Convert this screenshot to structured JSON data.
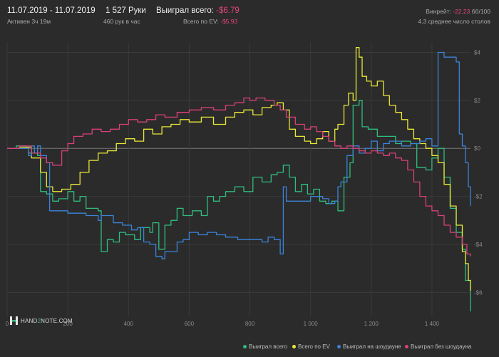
{
  "header": {
    "date_range": "11.07.2019 - 11.07.2019",
    "active": "Активен 3ч 19м",
    "hands": "1 527 Руки",
    "hands_per_hour": "460 рук в час",
    "won_label": "Выиграл всего:",
    "won_value": "-$6.79",
    "ev_label": "Всего по EV:",
    "ev_value": "-$5.93",
    "winrate_label": "Винрейт:",
    "winrate_value": "-22.23",
    "winrate_unit": "бб/100",
    "tables": "4.3 среднее число столов"
  },
  "logo": {
    "text_pre": "HAND",
    "text_mid": "2",
    "text_post": "NOTE.COM"
  },
  "colors": {
    "won": "#2ebd7e",
    "ev": "#e8e838",
    "showdown": "#3b83d9",
    "nonshowdown": "#d9407a",
    "grid": "#3a3a3a",
    "zero": "#777777"
  },
  "chart_data": {
    "type": "line",
    "xlim": [
      0,
      1527
    ],
    "ylim": [
      -7,
      4.4
    ],
    "x_ticks": [
      0,
      200,
      400,
      600,
      800,
      1000,
      1200,
      1400
    ],
    "x_tick_labels": [
      "0",
      "200",
      "400",
      "600",
      "800",
      "1 000",
      "1 200",
      "1 400"
    ],
    "y_ticks": [
      4,
      2,
      0,
      -2,
      -4,
      -6
    ],
    "y_tick_labels": [
      "$4",
      "$2",
      "$0",
      "-$2",
      "-$4",
      "-$6"
    ],
    "series": [
      {
        "name": "Выиграл всего",
        "color_key": "won",
        "points": [
          [
            0,
            0
          ],
          [
            30,
            0.1
          ],
          [
            60,
            0.05
          ],
          [
            70,
            -0.2
          ],
          [
            100,
            -0.3
          ],
          [
            110,
            -1.8
          ],
          [
            130,
            -1.9
          ],
          [
            150,
            -2.2
          ],
          [
            170,
            -2.1
          ],
          [
            200,
            -1.8
          ],
          [
            220,
            -2.2
          ],
          [
            240,
            -2.0
          ],
          [
            260,
            -2.5
          ],
          [
            300,
            -2.6
          ],
          [
            310,
            -4.3
          ],
          [
            330,
            -3.8
          ],
          [
            350,
            -3.9
          ],
          [
            370,
            -3.5
          ],
          [
            390,
            -3.6
          ],
          [
            420,
            -3.8
          ],
          [
            440,
            -3.3
          ],
          [
            470,
            -3.5
          ],
          [
            480,
            -3.1
          ],
          [
            500,
            -4.2
          ],
          [
            520,
            -3.2
          ],
          [
            540,
            -3.0
          ],
          [
            560,
            -2.5
          ],
          [
            580,
            -2.8
          ],
          [
            610,
            -2.6
          ],
          [
            640,
            -2.8
          ],
          [
            660,
            -2.0
          ],
          [
            680,
            -2.2
          ],
          [
            700,
            -2.0
          ],
          [
            720,
            -1.8
          ],
          [
            750,
            -1.6
          ],
          [
            780,
            -1.8
          ],
          [
            810,
            -1.2
          ],
          [
            840,
            -1.4
          ],
          [
            870,
            -1.1
          ],
          [
            890,
            -1.0
          ],
          [
            910,
            -0.7
          ],
          [
            930,
            -1.2
          ],
          [
            950,
            -1.8
          ],
          [
            970,
            -1.5
          ],
          [
            990,
            -1.9
          ],
          [
            1010,
            -1.7
          ],
          [
            1030,
            -2.2
          ],
          [
            1050,
            -2.3
          ],
          [
            1070,
            -2.2
          ],
          [
            1090,
            -2.6
          ],
          [
            1110,
            -1.2
          ],
          [
            1130,
            -0.6
          ],
          [
            1140,
            1.8
          ],
          [
            1160,
            2.0
          ],
          [
            1170,
            0.9
          ],
          [
            1190,
            0.8
          ],
          [
            1220,
            0.5
          ],
          [
            1250,
            0.5
          ],
          [
            1280,
            0.2
          ],
          [
            1300,
            0.3
          ],
          [
            1330,
            0.2
          ],
          [
            1350,
            -0.8
          ],
          [
            1380,
            -0.9
          ],
          [
            1400,
            -0.4
          ],
          [
            1420,
            0.0
          ],
          [
            1440,
            -1.2
          ],
          [
            1460,
            -2.5
          ],
          [
            1480,
            -3.5
          ],
          [
            1500,
            -4.2
          ],
          [
            1510,
            -5.5
          ],
          [
            1527,
            -6.79
          ]
        ]
      },
      {
        "name": "Всего по EV",
        "color_key": "ev",
        "points": [
          [
            0,
            0
          ],
          [
            40,
            0.05
          ],
          [
            80,
            -0.4
          ],
          [
            110,
            -1.0
          ],
          [
            130,
            -1.6
          ],
          [
            150,
            -1.8
          ],
          [
            180,
            -1.7
          ],
          [
            210,
            -1.5
          ],
          [
            240,
            -1.0
          ],
          [
            270,
            -0.5
          ],
          [
            300,
            -0.2
          ],
          [
            330,
            -0.1
          ],
          [
            360,
            0.2
          ],
          [
            390,
            0.4
          ],
          [
            420,
            0.3
          ],
          [
            450,
            0.8
          ],
          [
            480,
            0.6
          ],
          [
            510,
            0.9
          ],
          [
            540,
            1.0
          ],
          [
            570,
            1.2
          ],
          [
            600,
            1.1
          ],
          [
            640,
            1.3
          ],
          [
            680,
            1.0
          ],
          [
            720,
            1.3
          ],
          [
            750,
            1.5
          ],
          [
            780,
            1.6
          ],
          [
            810,
            1.4
          ],
          [
            840,
            1.7
          ],
          [
            870,
            1.8
          ],
          [
            890,
            1.9
          ],
          [
            910,
            1.6
          ],
          [
            930,
            0.8
          ],
          [
            950,
            0.5
          ],
          [
            980,
            0.3
          ],
          [
            1000,
            0.2
          ],
          [
            1020,
            0.4
          ],
          [
            1040,
            0.7
          ],
          [
            1060,
            0.3
          ],
          [
            1080,
            0.8
          ],
          [
            1090,
            1.0
          ],
          [
            1110,
            1.8
          ],
          [
            1125,
            2.3
          ],
          [
            1140,
            2.0
          ],
          [
            1150,
            4.2
          ],
          [
            1160,
            3.8
          ],
          [
            1170,
            3.0
          ],
          [
            1185,
            2.8
          ],
          [
            1200,
            2.6
          ],
          [
            1220,
            2.8
          ],
          [
            1240,
            2.2
          ],
          [
            1260,
            1.8
          ],
          [
            1280,
            1.5
          ],
          [
            1300,
            1.2
          ],
          [
            1320,
            0.8
          ],
          [
            1340,
            0.4
          ],
          [
            1360,
            0.2
          ],
          [
            1380,
            0.0
          ],
          [
            1400,
            -0.3
          ],
          [
            1420,
            -0.6
          ],
          [
            1440,
            -1.5
          ],
          [
            1460,
            -2.4
          ],
          [
            1480,
            -3.2
          ],
          [
            1500,
            -4.3
          ],
          [
            1510,
            -4.8
          ],
          [
            1520,
            -5.5
          ],
          [
            1527,
            -5.93
          ]
        ]
      },
      {
        "name": "Выиграл на шоудауне",
        "color_key": "showdown",
        "points": [
          [
            0,
            0
          ],
          [
            60,
            0
          ],
          [
            70,
            -0.3
          ],
          [
            80,
            0.1
          ],
          [
            90,
            -0.2
          ],
          [
            100,
            0.1
          ],
          [
            110,
            -0.3
          ],
          [
            130,
            -0.6
          ],
          [
            140,
            -2.6
          ],
          [
            180,
            -2.6
          ],
          [
            200,
            -2.7
          ],
          [
            260,
            -2.8
          ],
          [
            300,
            -3.0
          ],
          [
            310,
            -2.8
          ],
          [
            350,
            -3.1
          ],
          [
            380,
            -3.2
          ],
          [
            410,
            -3.4
          ],
          [
            430,
            -3.3
          ],
          [
            450,
            -3.9
          ],
          [
            470,
            -4.0
          ],
          [
            490,
            -4.5
          ],
          [
            510,
            -4.6
          ],
          [
            520,
            -4.3
          ],
          [
            560,
            -3.9
          ],
          [
            580,
            -3.8
          ],
          [
            600,
            -3.5
          ],
          [
            630,
            -3.6
          ],
          [
            660,
            -3.5
          ],
          [
            690,
            -3.6
          ],
          [
            720,
            -3.7
          ],
          [
            760,
            -3.8
          ],
          [
            800,
            -3.8
          ],
          [
            840,
            -3.9
          ],
          [
            860,
            -3.7
          ],
          [
            880,
            -3.8
          ],
          [
            900,
            -4.4
          ],
          [
            910,
            -1.6
          ],
          [
            920,
            -2.2
          ],
          [
            960,
            -2.2
          ],
          [
            1000,
            -2.0
          ],
          [
            1040,
            -2.1
          ],
          [
            1060,
            -2.3
          ],
          [
            1080,
            -2.2
          ],
          [
            1090,
            -1.6
          ],
          [
            1100,
            -1.4
          ],
          [
            1120,
            -0.3
          ],
          [
            1140,
            0.1
          ],
          [
            1160,
            -0.2
          ],
          [
            1180,
            0.0
          ],
          [
            1200,
            0.3
          ],
          [
            1220,
            -0.1
          ],
          [
            1240,
            0.2
          ],
          [
            1260,
            0.3
          ],
          [
            1300,
            0.1
          ],
          [
            1330,
            0.2
          ],
          [
            1360,
            0.3
          ],
          [
            1380,
            0.4
          ],
          [
            1400,
            0.1
          ],
          [
            1420,
            4.0
          ],
          [
            1440,
            3.8
          ],
          [
            1460,
            3.8
          ],
          [
            1480,
            3.6
          ],
          [
            1490,
            0.6
          ],
          [
            1500,
            0.1
          ],
          [
            1510,
            -0.6
          ],
          [
            1520,
            -1.6
          ],
          [
            1527,
            -2.4
          ]
        ]
      },
      {
        "name": "Выиграл без шоудауна",
        "color_key": "nonshowdown",
        "points": [
          [
            0,
            0
          ],
          [
            40,
            0.1
          ],
          [
            80,
            -0.2
          ],
          [
            110,
            -0.4
          ],
          [
            130,
            -0.6
          ],
          [
            150,
            -0.7
          ],
          [
            180,
            -0.1
          ],
          [
            200,
            0.2
          ],
          [
            220,
            0.5
          ],
          [
            250,
            0.6
          ],
          [
            280,
            0.8
          ],
          [
            310,
            0.7
          ],
          [
            340,
            0.8
          ],
          [
            370,
            1.0
          ],
          [
            400,
            1.2
          ],
          [
            430,
            1.1
          ],
          [
            460,
            1.2
          ],
          [
            490,
            1.4
          ],
          [
            520,
            1.3
          ],
          [
            560,
            1.5
          ],
          [
            600,
            1.6
          ],
          [
            640,
            1.7
          ],
          [
            680,
            1.6
          ],
          [
            720,
            1.8
          ],
          [
            750,
            1.9
          ],
          [
            780,
            2.1
          ],
          [
            800,
            2.0
          ],
          [
            820,
            2.1
          ],
          [
            850,
            2.0
          ],
          [
            880,
            1.8
          ],
          [
            900,
            1.6
          ],
          [
            920,
            1.3
          ],
          [
            950,
            1.0
          ],
          [
            980,
            0.8
          ],
          [
            1000,
            0.9
          ],
          [
            1020,
            0.7
          ],
          [
            1040,
            0.5
          ],
          [
            1060,
            0.3
          ],
          [
            1080,
            0.1
          ],
          [
            1100,
            0.0
          ],
          [
            1120,
            0.1
          ],
          [
            1140,
            0.0
          ],
          [
            1160,
            -0.1
          ],
          [
            1180,
            -0.2
          ],
          [
            1200,
            -0.1
          ],
          [
            1220,
            -0.2
          ],
          [
            1240,
            -0.3
          ],
          [
            1260,
            -0.2
          ],
          [
            1280,
            -0.4
          ],
          [
            1300,
            -0.5
          ],
          [
            1320,
            -0.9
          ],
          [
            1340,
            -1.4
          ],
          [
            1360,
            -2.0
          ],
          [
            1380,
            -2.4
          ],
          [
            1400,
            -2.6
          ],
          [
            1420,
            -2.8
          ],
          [
            1440,
            -3.2
          ],
          [
            1460,
            -3.5
          ],
          [
            1480,
            -3.7
          ],
          [
            1500,
            -4.0
          ],
          [
            1515,
            -4.4
          ],
          [
            1527,
            -4.5
          ]
        ]
      }
    ]
  }
}
